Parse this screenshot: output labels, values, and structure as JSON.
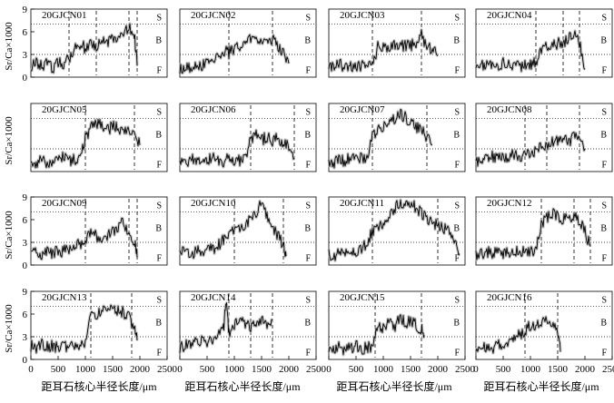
{
  "figure": {
    "y_axis_label": "Sr/Ca×1000",
    "x_axis_label": "距耳石核心半径长度/μm",
    "zone_labels": [
      "S",
      "B",
      "F"
    ],
    "colors": {
      "trace": "#000000",
      "envelope": "#b8b8b8",
      "axis": "#000000",
      "reference_line": "#000000"
    }
  },
  "chart_data": [
    {
      "type": "line",
      "title": "20GJCN01",
      "xlim": [
        0,
        2500
      ],
      "ylim": [
        0,
        9
      ],
      "xticks": [],
      "yticks": [
        0,
        3,
        6,
        9
      ],
      "reference_lines": [
        3,
        7
      ],
      "boundaries": [
        700,
        1200,
        1800,
        1950
      ],
      "series": [
        {
          "x": [
            0,
            100,
            200,
            300,
            400,
            500,
            600,
            700,
            800,
            900,
            1000,
            1100,
            1200,
            1300,
            1400,
            1500,
            1600,
            1700,
            1800,
            1900,
            1950
          ],
          "y": [
            1.5,
            1.8,
            1.4,
            1.9,
            1.2,
            2.0,
            1.8,
            2.5,
            4.0,
            4.4,
            3.8,
            4.5,
            4.2,
            4.8,
            4.5,
            5.2,
            5.0,
            5.8,
            6.8,
            5.5,
            1.5
          ]
        }
      ]
    },
    {
      "type": "line",
      "title": "20GJCN02",
      "xlim": [
        0,
        2500
      ],
      "ylim": [
        0,
        9
      ],
      "xticks": [],
      "yticks": [],
      "reference_lines": [
        3,
        7
      ],
      "boundaries": [
        900,
        1700
      ],
      "series": [
        {
          "x": [
            0,
            100,
            200,
            300,
            400,
            500,
            600,
            700,
            800,
            900,
            1000,
            1100,
            1200,
            1300,
            1400,
            1500,
            1600,
            1700,
            1800,
            1900,
            2000
          ],
          "y": [
            1.0,
            1.5,
            1.2,
            1.8,
            1.6,
            1.9,
            2.4,
            3.0,
            3.5,
            3.2,
            3.8,
            4.2,
            4.6,
            5.2,
            4.8,
            5.0,
            5.2,
            5.0,
            4.0,
            3.2,
            1.8
          ]
        }
      ]
    },
    {
      "type": "line",
      "title": "20GJCN03",
      "xlim": [
        0,
        2500
      ],
      "ylim": [
        0,
        9
      ],
      "xticks": [],
      "yticks": [],
      "reference_lines": [
        3,
        7
      ],
      "boundaries": [
        800,
        1700
      ],
      "series": [
        {
          "x": [
            0,
            100,
            200,
            300,
            400,
            500,
            600,
            700,
            800,
            900,
            1000,
            1100,
            1200,
            1300,
            1400,
            1500,
            1600,
            1700,
            1800,
            1900,
            2000
          ],
          "y": [
            1.5,
            1.2,
            1.8,
            1.0,
            1.5,
            1.3,
            1.6,
            1.4,
            1.5,
            4.0,
            4.2,
            3.8,
            4.5,
            4.0,
            4.3,
            4.1,
            4.6,
            5.5,
            4.0,
            3.8,
            2.8
          ]
        }
      ]
    },
    {
      "type": "line",
      "title": "20GJCN04",
      "xlim": [
        0,
        2500
      ],
      "ylim": [
        0,
        9
      ],
      "xticks": [],
      "yticks": [],
      "reference_lines": [
        3,
        7
      ],
      "boundaries": [
        1100,
        1600,
        1900
      ],
      "series": [
        {
          "x": [
            0,
            100,
            200,
            300,
            400,
            500,
            600,
            700,
            800,
            900,
            1000,
            1100,
            1200,
            1300,
            1400,
            1500,
            1600,
            1700,
            1800,
            1900,
            2000
          ],
          "y": [
            1.5,
            1.8,
            1.4,
            1.6,
            1.3,
            1.8,
            1.5,
            1.7,
            1.4,
            1.6,
            1.8,
            2.0,
            3.8,
            4.2,
            4.0,
            4.5,
            4.2,
            5.2,
            5.8,
            4.5,
            1.0
          ]
        }
      ]
    },
    {
      "type": "line",
      "title": "20GJCN05",
      "xlim": [
        0,
        2500
      ],
      "ylim": [
        0,
        9
      ],
      "xticks": [],
      "yticks": [],
      "reference_lines": [
        3,
        7
      ],
      "boundaries": [
        1000,
        1900
      ],
      "series": [
        {
          "x": [
            0,
            100,
            200,
            300,
            400,
            500,
            600,
            700,
            800,
            900,
            1000,
            1100,
            1200,
            1300,
            1400,
            1500,
            1600,
            1700,
            1800,
            1900,
            2000
          ],
          "y": [
            1.5,
            1.0,
            1.8,
            1.2,
            1.5,
            1.3,
            1.9,
            1.4,
            1.6,
            1.5,
            4.5,
            5.8,
            6.5,
            6.0,
            5.5,
            6.0,
            5.8,
            5.2,
            5.5,
            4.8,
            3.5
          ]
        }
      ]
    },
    {
      "type": "line",
      "title": "20GJCN06",
      "xlim": [
        0,
        2500
      ],
      "ylim": [
        0,
        9
      ],
      "xticks": [],
      "yticks": [],
      "reference_lines": [
        3,
        7
      ],
      "boundaries": [
        1300,
        2100
      ],
      "series": [
        {
          "x": [
            0,
            100,
            200,
            300,
            400,
            500,
            600,
            700,
            800,
            900,
            1000,
            1100,
            1200,
            1300,
            1400,
            1500,
            1600,
            1700,
            1800,
            1900,
            2000,
            2100
          ],
          "y": [
            1.5,
            1.0,
            1.8,
            1.2,
            1.6,
            1.4,
            1.8,
            1.5,
            1.3,
            1.7,
            1.6,
            1.4,
            1.8,
            4.5,
            4.8,
            4.2,
            4.5,
            4.0,
            4.4,
            3.8,
            3.2,
            1.8
          ]
        }
      ]
    },
    {
      "type": "line",
      "title": "20GJCN07",
      "xlim": [
        0,
        2500
      ],
      "ylim": [
        0,
        9
      ],
      "xticks": [],
      "yticks": [],
      "reference_lines": [
        3,
        7
      ],
      "boundaries": [
        800,
        1800
      ],
      "series": [
        {
          "x": [
            0,
            100,
            200,
            300,
            400,
            500,
            600,
            700,
            800,
            900,
            1000,
            1100,
            1200,
            1300,
            1400,
            1500,
            1600,
            1700,
            1800,
            1900
          ],
          "y": [
            1.5,
            1.2,
            1.8,
            1.3,
            2.0,
            1.6,
            1.8,
            1.5,
            4.8,
            5.5,
            6.0,
            6.5,
            7.0,
            7.8,
            7.2,
            6.5,
            6.0,
            5.5,
            4.5,
            3.5
          ]
        }
      ]
    },
    {
      "type": "line",
      "title": "20GJCN08",
      "xlim": [
        0,
        2500
      ],
      "ylim": [
        0,
        9
      ],
      "xticks": [],
      "yticks": [],
      "reference_lines": [
        3,
        7
      ],
      "boundaries": [
        900,
        1300,
        1900
      ],
      "series": [
        {
          "x": [
            0,
            100,
            200,
            300,
            400,
            500,
            600,
            700,
            800,
            900,
            1000,
            1100,
            1200,
            1300,
            1400,
            1500,
            1600,
            1700,
            1800,
            1900,
            2000
          ],
          "y": [
            1.2,
            1.8,
            1.5,
            2.0,
            1.6,
            2.2,
            1.8,
            2.4,
            2.0,
            2.2,
            2.5,
            2.8,
            3.2,
            3.5,
            3.8,
            4.0,
            4.5,
            3.8,
            5.0,
            4.2,
            3.0
          ]
        }
      ]
    },
    {
      "type": "line",
      "title": "20GJCN09",
      "xlim": [
        0,
        2500
      ],
      "ylim": [
        0,
        9
      ],
      "xticks": [],
      "yticks": [
        0,
        3,
        6,
        9
      ],
      "reference_lines": [
        3,
        7
      ],
      "boundaries": [
        1000,
        1800,
        1950
      ],
      "series": [
        {
          "x": [
            0,
            100,
            200,
            300,
            400,
            500,
            600,
            700,
            800,
            900,
            1000,
            1100,
            1200,
            1300,
            1400,
            1500,
            1600,
            1700,
            1800,
            1900,
            1950
          ],
          "y": [
            1.5,
            1.8,
            1.4,
            2.0,
            1.6,
            1.9,
            1.8,
            2.1,
            2.4,
            2.8,
            3.5,
            4.2,
            3.8,
            3.5,
            4.0,
            4.5,
            5.0,
            5.8,
            4.0,
            3.2,
            1.0
          ]
        }
      ]
    },
    {
      "type": "line",
      "title": "20GJCN10",
      "xlim": [
        0,
        2500
      ],
      "ylim": [
        0,
        9
      ],
      "xticks": [],
      "yticks": [],
      "reference_lines": [
        3,
        7
      ],
      "boundaries": [
        1000,
        1900
      ],
      "series": [
        {
          "x": [
            0,
            100,
            200,
            300,
            400,
            500,
            600,
            700,
            800,
            900,
            1000,
            1100,
            1200,
            1300,
            1400,
            1500,
            1600,
            1700,
            1800,
            1900,
            1950
          ],
          "y": [
            1.5,
            1.8,
            1.4,
            1.9,
            1.6,
            1.8,
            2.2,
            2.5,
            3.5,
            4.2,
            4.8,
            5.0,
            5.5,
            6.0,
            7.0,
            8.2,
            6.5,
            5.0,
            4.0,
            2.5,
            1.2
          ]
        }
      ]
    },
    {
      "type": "line",
      "title": "20GJCN11",
      "xlim": [
        0,
        2500
      ],
      "ylim": [
        0,
        9
      ],
      "xticks": [],
      "yticks": [],
      "reference_lines": [
        3,
        7
      ],
      "boundaries": [
        800,
        2000
      ],
      "series": [
        {
          "x": [
            0,
            100,
            200,
            300,
            400,
            500,
            600,
            700,
            800,
            900,
            1000,
            1100,
            1200,
            1300,
            1400,
            1500,
            1600,
            1700,
            1800,
            1900,
            2000,
            2100,
            2200,
            2300,
            2400
          ],
          "y": [
            1.5,
            1.2,
            1.8,
            1.4,
            1.6,
            1.3,
            2.2,
            2.8,
            4.5,
            5.0,
            5.5,
            6.5,
            7.5,
            8.0,
            8.5,
            8.2,
            7.5,
            6.8,
            6.0,
            5.5,
            5.2,
            5.0,
            4.5,
            3.5,
            1.5
          ]
        }
      ]
    },
    {
      "type": "line",
      "title": "20GJCN12",
      "xlim": [
        0,
        2500
      ],
      "ylim": [
        0,
        9
      ],
      "xticks": [],
      "yticks": [],
      "reference_lines": [
        3,
        7
      ],
      "boundaries": [
        1200,
        1800,
        2100
      ],
      "series": [
        {
          "x": [
            0,
            100,
            200,
            300,
            400,
            500,
            600,
            700,
            800,
            900,
            1000,
            1100,
            1200,
            1300,
            1400,
            1500,
            1600,
            1700,
            1800,
            1900,
            2000,
            2100
          ],
          "y": [
            1.2,
            1.5,
            1.8,
            1.4,
            2.0,
            1.6,
            1.8,
            1.5,
            1.9,
            1.7,
            1.8,
            2.2,
            5.5,
            6.2,
            6.8,
            6.5,
            6.0,
            6.5,
            6.2,
            6.0,
            4.5,
            2.5
          ]
        }
      ]
    },
    {
      "type": "line",
      "title": "20GJCN13",
      "xlim": [
        0,
        2500
      ],
      "ylim": [
        0,
        9
      ],
      "xticks": [
        0,
        500,
        1000,
        1500,
        2000,
        2500
      ],
      "yticks": [
        0,
        3,
        6,
        9
      ],
      "reference_lines": [
        3,
        7
      ],
      "boundaries": [
        1100,
        1850
      ],
      "series": [
        {
          "x": [
            0,
            100,
            200,
            300,
            400,
            500,
            600,
            700,
            800,
            900,
            1000,
            1100,
            1200,
            1300,
            1400,
            1500,
            1600,
            1700,
            1800,
            1900,
            1950
          ],
          "y": [
            1.8,
            1.5,
            2.0,
            1.6,
            1.8,
            1.5,
            1.9,
            1.7,
            1.8,
            2.0,
            2.2,
            5.5,
            6.0,
            6.5,
            7.0,
            6.8,
            6.5,
            6.2,
            5.5,
            4.0,
            2.5
          ]
        }
      ]
    },
    {
      "type": "line",
      "title": "20GJCN14",
      "xlim": [
        0,
        2500
      ],
      "ylim": [
        0,
        9
      ],
      "xticks": [
        0,
        500,
        1000,
        1500,
        2000,
        2500
      ],
      "yticks": [],
      "reference_lines": [
        3,
        7
      ],
      "boundaries": [
        900,
        1300,
        1700
      ],
      "series": [
        {
          "x": [
            0,
            100,
            200,
            300,
            400,
            500,
            600,
            700,
            800,
            850,
            900,
            1000,
            1100,
            1200,
            1300,
            1400,
            1500,
            1600,
            1700
          ],
          "y": [
            1.5,
            1.8,
            2.0,
            2.2,
            2.5,
            2.0,
            2.8,
            3.2,
            4.0,
            7.5,
            3.5,
            4.5,
            5.5,
            4.8,
            4.2,
            5.0,
            5.5,
            4.8,
            5.2
          ]
        }
      ]
    },
    {
      "type": "line",
      "title": "20GJCN15",
      "xlim": [
        0,
        2500
      ],
      "ylim": [
        0,
        9
      ],
      "xticks": [
        0,
        500,
        1000,
        1500,
        2000,
        2500
      ],
      "yticks": [],
      "reference_lines": [
        3,
        7
      ],
      "boundaries": [
        850,
        1700
      ],
      "series": [
        {
          "x": [
            0,
            100,
            200,
            300,
            400,
            500,
            600,
            700,
            800,
            900,
            1000,
            1100,
            1200,
            1300,
            1400,
            1500,
            1600,
            1700,
            1750
          ],
          "y": [
            1.5,
            1.0,
            1.8,
            1.2,
            1.5,
            1.8,
            1.3,
            1.6,
            1.5,
            4.5,
            4.0,
            5.0,
            4.2,
            5.5,
            4.8,
            5.2,
            4.5,
            4.0,
            3.2
          ]
        }
      ]
    },
    {
      "type": "line",
      "title": "20GJCN16",
      "xlim": [
        0,
        2500
      ],
      "ylim": [
        0,
        9
      ],
      "xticks": [
        0,
        500,
        1000,
        1500,
        2000,
        2500
      ],
      "yticks": [],
      "reference_lines": [
        3,
        7
      ],
      "boundaries": [
        900,
        1500
      ],
      "series": [
        {
          "x": [
            0,
            100,
            200,
            300,
            400,
            500,
            600,
            700,
            800,
            900,
            1000,
            1100,
            1200,
            1300,
            1400,
            1500,
            1550
          ],
          "y": [
            1.5,
            1.2,
            1.8,
            1.5,
            2.0,
            1.6,
            2.2,
            2.8,
            3.2,
            3.8,
            4.5,
            4.2,
            5.0,
            5.5,
            4.8,
            3.5,
            1.0
          ]
        }
      ]
    }
  ]
}
